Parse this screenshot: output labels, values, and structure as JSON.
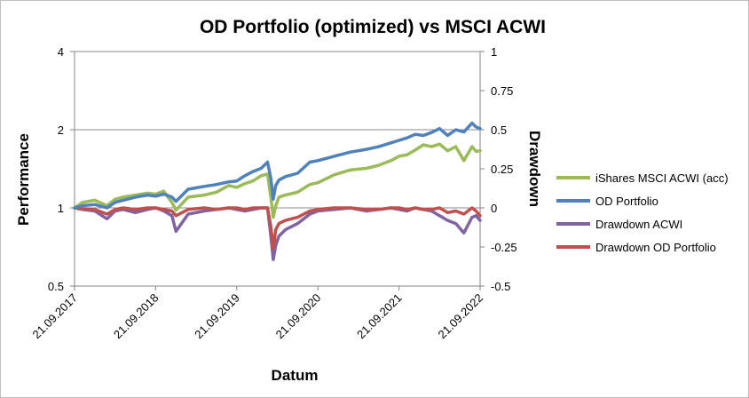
{
  "chart_data": {
    "type": "line",
    "title": "OD Portfolio (optimized) vs MSCI ACWI",
    "xlabel": "Datum",
    "ylabel": "Performance",
    "y2label": "Drawdown",
    "x_ticks": [
      "21.09.2017",
      "21.09.2018",
      "21.09.2019",
      "21.09.2020",
      "21.09.2021",
      "21.09.2022"
    ],
    "y_ticks": [
      "0.5",
      "1",
      "2",
      "4"
    ],
    "y_scale": "log2",
    "ylim": [
      0.5,
      4
    ],
    "y2_ticks": [
      "-0.5",
      "-0.25",
      "0",
      "0.25",
      "0.5",
      "0.75",
      "1"
    ],
    "y2lim": [
      -0.5,
      1
    ],
    "x_range_years": [
      0,
      5
    ],
    "series": [
      {
        "name": "iShares MSCI ACWI (acc)",
        "axis": "left",
        "color": "#9bbb59",
        "x": [
          0,
          0.1,
          0.25,
          0.4,
          0.5,
          0.6,
          0.75,
          0.9,
          1.0,
          1.1,
          1.2,
          1.25,
          1.4,
          1.6,
          1.75,
          1.9,
          2.0,
          2.1,
          2.2,
          2.3,
          2.38,
          2.42,
          2.45,
          2.48,
          2.52,
          2.6,
          2.75,
          2.9,
          3.0,
          3.2,
          3.4,
          3.6,
          3.75,
          3.9,
          4.0,
          4.1,
          4.2,
          4.3,
          4.4,
          4.5,
          4.6,
          4.7,
          4.8,
          4.9,
          4.95,
          5.0
        ],
        "values": [
          1.0,
          1.05,
          1.07,
          1.02,
          1.08,
          1.1,
          1.12,
          1.14,
          1.13,
          1.16,
          1.05,
          0.98,
          1.1,
          1.12,
          1.15,
          1.22,
          1.2,
          1.24,
          1.27,
          1.33,
          1.35,
          1.1,
          0.92,
          1.02,
          1.1,
          1.12,
          1.15,
          1.23,
          1.25,
          1.34,
          1.4,
          1.42,
          1.46,
          1.52,
          1.58,
          1.6,
          1.67,
          1.75,
          1.72,
          1.76,
          1.66,
          1.72,
          1.52,
          1.72,
          1.65,
          1.66
        ]
      },
      {
        "name": "OD Portfolio",
        "axis": "left",
        "color": "#4f81bd",
        "x": [
          0,
          0.1,
          0.25,
          0.4,
          0.5,
          0.6,
          0.75,
          0.9,
          1.0,
          1.1,
          1.2,
          1.25,
          1.4,
          1.6,
          1.75,
          1.9,
          2.0,
          2.1,
          2.2,
          2.3,
          2.38,
          2.42,
          2.45,
          2.48,
          2.52,
          2.6,
          2.75,
          2.9,
          3.0,
          3.2,
          3.4,
          3.6,
          3.75,
          3.9,
          4.0,
          4.1,
          4.2,
          4.3,
          4.4,
          4.5,
          4.6,
          4.7,
          4.8,
          4.9,
          4.95,
          5.0
        ],
        "values": [
          1.0,
          1.02,
          1.03,
          1.0,
          1.05,
          1.07,
          1.1,
          1.12,
          1.11,
          1.13,
          1.1,
          1.06,
          1.18,
          1.21,
          1.23,
          1.26,
          1.27,
          1.33,
          1.38,
          1.42,
          1.5,
          1.3,
          1.08,
          1.22,
          1.28,
          1.32,
          1.36,
          1.5,
          1.52,
          1.58,
          1.64,
          1.68,
          1.72,
          1.78,
          1.82,
          1.86,
          1.92,
          1.9,
          1.95,
          2.02,
          1.9,
          2.0,
          1.96,
          2.12,
          2.05,
          2.02
        ]
      },
      {
        "name": "Drawdown ACWI",
        "axis": "right",
        "color": "#8064a2",
        "x": [
          0,
          0.1,
          0.25,
          0.4,
          0.5,
          0.6,
          0.75,
          0.9,
          1.0,
          1.1,
          1.2,
          1.25,
          1.4,
          1.6,
          1.75,
          1.9,
          2.0,
          2.1,
          2.2,
          2.3,
          2.38,
          2.42,
          2.45,
          2.48,
          2.52,
          2.6,
          2.75,
          2.9,
          3.0,
          3.2,
          3.4,
          3.6,
          3.75,
          3.9,
          4.0,
          4.1,
          4.2,
          4.3,
          4.4,
          4.5,
          4.6,
          4.7,
          4.8,
          4.9,
          4.95,
          5.0
        ],
        "values": [
          0,
          -0.01,
          -0.02,
          -0.07,
          -0.02,
          -0.01,
          -0.03,
          -0.01,
          0,
          -0.02,
          -0.05,
          -0.15,
          -0.04,
          -0.02,
          -0.01,
          0,
          -0.01,
          -0.02,
          -0.01,
          0,
          0,
          -0.18,
          -0.33,
          -0.24,
          -0.18,
          -0.14,
          -0.1,
          -0.04,
          -0.02,
          -0.01,
          0,
          -0.02,
          -0.01,
          0,
          -0.01,
          -0.02,
          0,
          -0.01,
          -0.02,
          -0.05,
          -0.08,
          -0.1,
          -0.16,
          -0.06,
          -0.05,
          -0.08
        ]
      },
      {
        "name": "Drawdown OD Portfolio",
        "axis": "right",
        "color": "#c0504d",
        "x": [
          0,
          0.1,
          0.25,
          0.4,
          0.5,
          0.6,
          0.75,
          0.9,
          1.0,
          1.1,
          1.2,
          1.25,
          1.4,
          1.6,
          1.75,
          1.9,
          2.0,
          2.1,
          2.2,
          2.3,
          2.38,
          2.42,
          2.45,
          2.48,
          2.52,
          2.6,
          2.75,
          2.9,
          3.0,
          3.2,
          3.4,
          3.6,
          3.75,
          3.9,
          4.0,
          4.1,
          4.2,
          4.3,
          4.4,
          4.5,
          4.6,
          4.7,
          4.8,
          4.9,
          4.95,
          5.0
        ],
        "values": [
          0,
          -0.005,
          -0.01,
          -0.04,
          -0.01,
          0,
          -0.01,
          0,
          0,
          -0.01,
          -0.02,
          -0.05,
          -0.01,
          0,
          -0.01,
          0,
          0,
          -0.01,
          0,
          0,
          0,
          -0.12,
          -0.26,
          -0.14,
          -0.1,
          -0.08,
          -0.06,
          -0.02,
          -0.01,
          0,
          0,
          -0.01,
          -0.01,
          0,
          0,
          -0.01,
          0,
          -0.01,
          -0.01,
          0,
          -0.03,
          -0.02,
          -0.04,
          0,
          -0.02,
          -0.05
        ]
      }
    ],
    "legend_position": "right"
  }
}
